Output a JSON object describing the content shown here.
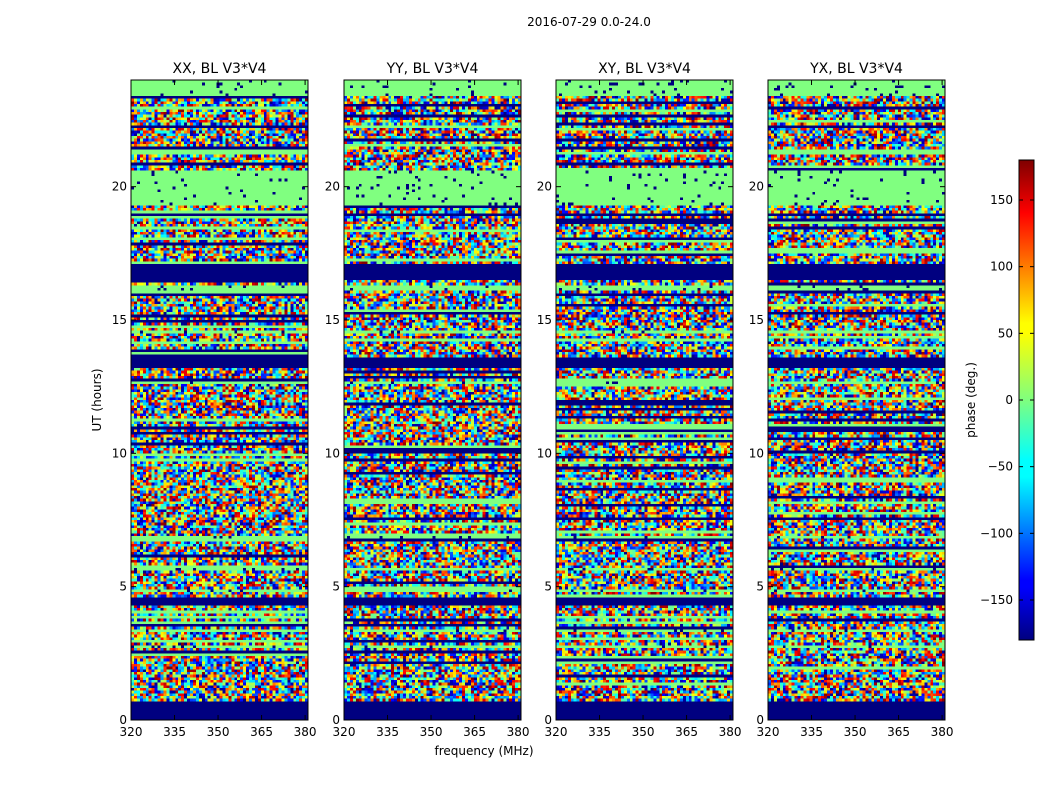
{
  "chart_data": {
    "type": "heatmap",
    "suptitle": "2016-07-29 0.0-24.0",
    "xlabel": "frequency (MHz)",
    "ylabel": "UT (hours)",
    "xlim": [
      320,
      381
    ],
    "ylim": [
      0,
      24
    ],
    "xticks": [
      320,
      335,
      350,
      365,
      380
    ],
    "yticks": [
      0,
      5,
      10,
      15,
      20
    ],
    "panels": [
      {
        "title": "XX, BL V3*V4"
      },
      {
        "title": "YY, BL V3*V4"
      },
      {
        "title": "XY, BL V3*V4"
      },
      {
        "title": "YX, BL V3*V4"
      }
    ],
    "colorbar": {
      "label": "phase (deg.)",
      "range": [
        -180,
        180
      ],
      "ticks": [
        150,
        100,
        50,
        0,
        -50,
        -100,
        -150
      ],
      "tick_labels": [
        "150",
        "100",
        "50",
        "0",
        "−50",
        "−100",
        "−150"
      ],
      "colormap": "jet"
    },
    "flagged_phase_deg": -180,
    "flagged_hours": [
      [
        0.0,
        0.7
      ],
      [
        4.3,
        4.6
      ],
      [
        13.2,
        13.6
      ],
      [
        16.5,
        17.1
      ],
      [
        18.9,
        19.0
      ]
    ],
    "constant_phase_deg": 0,
    "constant_hours": [
      [
        19.3,
        20.6
      ],
      [
        23.4,
        24.0
      ],
      [
        16.1,
        16.3
      ],
      [
        14.5,
        14.6
      ],
      [
        12.6,
        12.7
      ],
      [
        6.8,
        6.9
      ],
      [
        5.6,
        5.7
      ],
      [
        4.8,
        4.9
      ],
      [
        3.3,
        3.4
      ],
      [
        2.7,
        2.8
      ]
    ]
  }
}
